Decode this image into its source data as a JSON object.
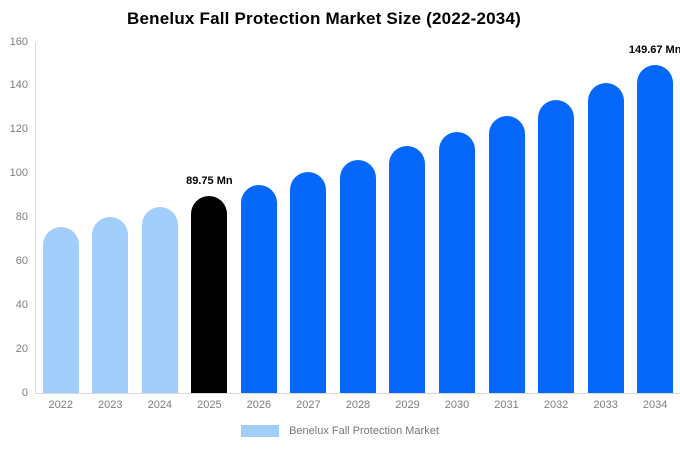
{
  "page": {
    "background_color": "#ffffff"
  },
  "chart_data": {
    "type": "bar",
    "title": "Benelux Fall Protection Market Size (2022-2034)",
    "categories": [
      "2022",
      "2023",
      "2024",
      "2025",
      "2026",
      "2027",
      "2028",
      "2029",
      "2030",
      "2031",
      "2032",
      "2033",
      "2034"
    ],
    "values": [
      75.7,
      80.1,
      84.8,
      89.75,
      95.0,
      100.6,
      106.4,
      112.6,
      119.2,
      126.2,
      133.5,
      141.4,
      149.67
    ],
    "unit": "Mn",
    "point_labels": [
      "",
      "",
      "",
      "89.75 Mn",
      "",
      "",
      "",
      "",
      "",
      "",
      "",
      "",
      "149.67 Mn"
    ],
    "bar_colors": [
      "#A1CEFB",
      "#A1CEFB",
      "#A1CEFB",
      "#000000",
      "#0568FB",
      "#0568FB",
      "#0568FB",
      "#0568FB",
      "#0568FB",
      "#0568FB",
      "#0568FB",
      "#0568FB",
      "#0568FB"
    ],
    "xlabel": "",
    "ylabel": "",
    "ylim": [
      0,
      160
    ],
    "yticks": [
      0,
      20,
      40,
      60,
      80,
      100,
      120,
      140,
      160
    ],
    "grid": false,
    "legend": {
      "label": "Benelux Fall Protection Market",
      "swatch_color": "#A1CEFB",
      "position": "bottom"
    },
    "colors": {
      "historical_bar": "#A1CEFB",
      "base_year_bar": "#000000",
      "forecast_bar": "#0568FB",
      "axis_line": "#D9D9D9",
      "axis_text": "#7D7D7D",
      "legend_text": "#757575",
      "value_label_text": "#000000",
      "title_text": "#000000"
    }
  }
}
